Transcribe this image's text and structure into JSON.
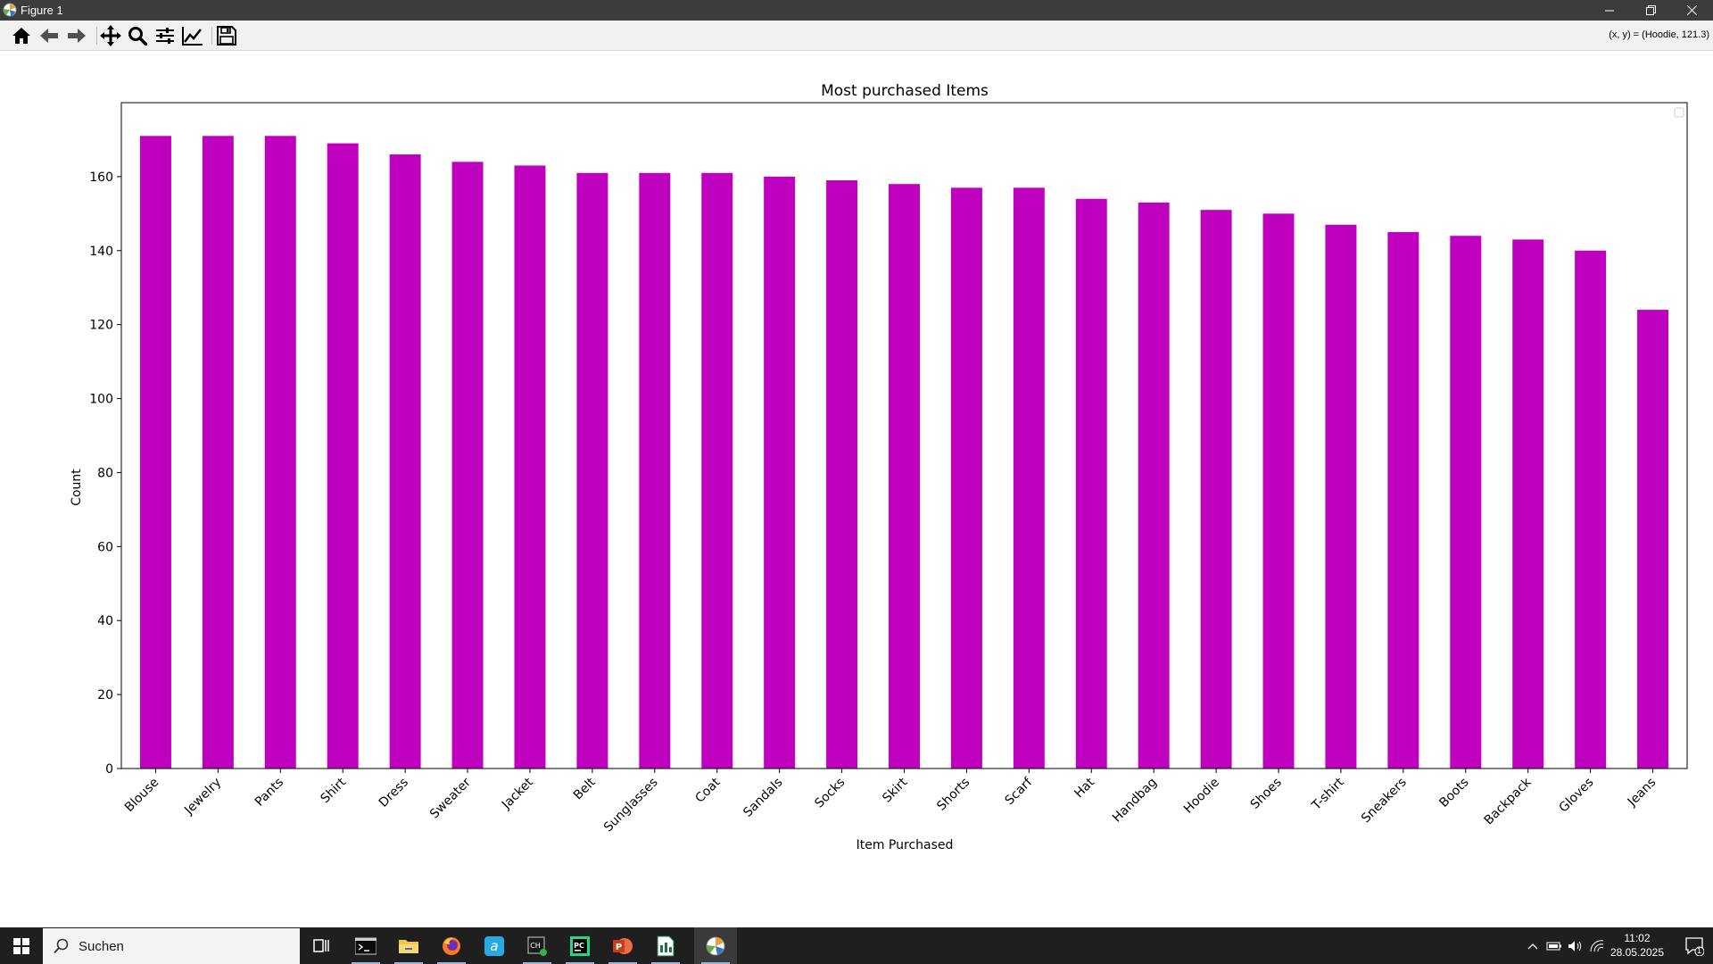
{
  "window": {
    "title": "Figure 1"
  },
  "toolbar": {
    "buttons": [
      {
        "icon": "home-icon",
        "label": "Home"
      },
      {
        "icon": "back-icon",
        "label": "Back"
      },
      {
        "icon": "forward-icon",
        "label": "Forward"
      },
      {
        "icon": "pan-icon",
        "label": "Pan"
      },
      {
        "icon": "zoom-icon",
        "label": "Zoom"
      },
      {
        "icon": "subplots-icon",
        "label": "Subplots"
      },
      {
        "icon": "edit-axis-icon",
        "label": "Customize"
      },
      {
        "icon": "save-icon",
        "label": "Save"
      }
    ],
    "coords": "(x, y) = (Hoodie, 121.3)"
  },
  "chart_data": {
    "type": "bar",
    "title": "Most purchased Items",
    "xlabel": "Item Purchased",
    "ylabel": "Count",
    "ylim": [
      0,
      180
    ],
    "yticks": [
      0,
      20,
      40,
      60,
      80,
      100,
      120,
      140,
      160
    ],
    "bar_color": "#bf00bf",
    "grid": false,
    "legend": "top-right (empty)",
    "categories": [
      "Blouse",
      "Jewelry",
      "Pants",
      "Shirt",
      "Dress",
      "Sweater",
      "Jacket",
      "Belt",
      "Sunglasses",
      "Coat",
      "Sandals",
      "Socks",
      "Skirt",
      "Shorts",
      "Scarf",
      "Hat",
      "Handbag",
      "Hoodie",
      "Shoes",
      "T-shirt",
      "Sneakers",
      "Boots",
      "Backpack",
      "Gloves",
      "Jeans"
    ],
    "values": [
      171,
      171,
      171,
      169,
      166,
      164,
      163,
      161,
      161,
      161,
      160,
      159,
      158,
      157,
      157,
      154,
      153,
      151,
      150,
      147,
      145,
      144,
      143,
      140,
      124
    ]
  },
  "taskbar": {
    "search_placeholder": "Suchen",
    "apps": [
      "terminal-icon",
      "file-explorer-icon",
      "firefox-icon",
      "app-a-icon",
      "app-ch-icon",
      "pycharm-icon",
      "powerpoint-icon",
      "spreadsheet-icon",
      "matplotlib-icon"
    ],
    "time": "11:02",
    "date": "28.05.2025",
    "notifications": "1"
  }
}
